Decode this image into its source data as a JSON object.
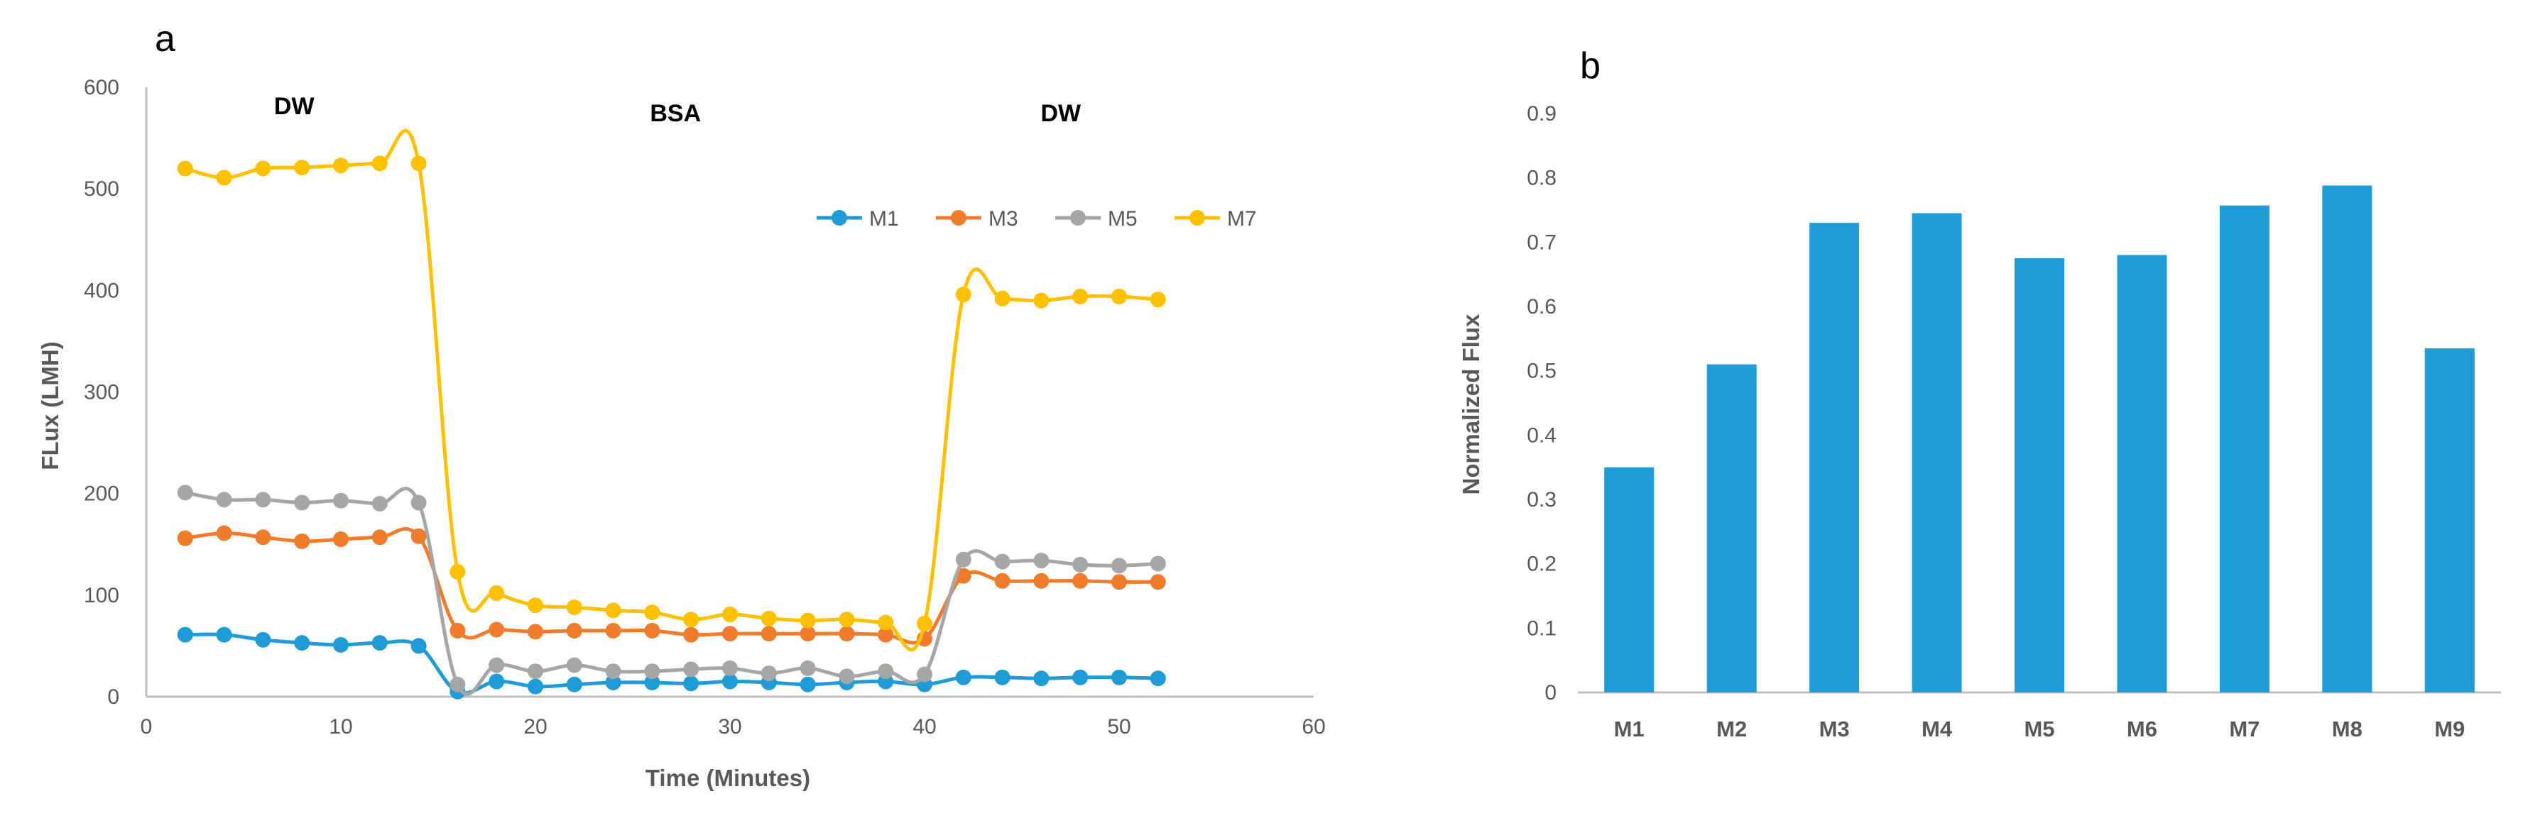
{
  "colors": {
    "M1": "#1f9bd7",
    "M3": "#f07b2b",
    "M5": "#a6a6a6",
    "M7": "#ffc000",
    "bar": "#1f9bd7",
    "axis": "#bfbfbf",
    "text": "#595959"
  },
  "chart_data": [
    {
      "type": "line",
      "panel_label": "a",
      "xlabel": "Time (Minutes)",
      "ylabel": "FLux (LMH)",
      "xlim": [
        0,
        60
      ],
      "ylim": [
        0,
        600
      ],
      "xticks": [
        "0",
        "10",
        "20",
        "30",
        "40",
        "50",
        "60"
      ],
      "yticks": [
        "0",
        "100",
        "200",
        "300",
        "400",
        "500",
        "600"
      ],
      "legend_position": "top-right",
      "annotations": [
        {
          "text": "DW",
          "x": 7.6,
          "y": 582
        },
        {
          "text": "BSA",
          "x": 27.2,
          "y": 575
        },
        {
          "text": "DW",
          "x": 47.0,
          "y": 575
        }
      ],
      "x": [
        2,
        4,
        6,
        8,
        10,
        12,
        14,
        16,
        18,
        20,
        22,
        24,
        26,
        28,
        30,
        32,
        34,
        36,
        38,
        40,
        42,
        44,
        46,
        48,
        50,
        52
      ],
      "series": [
        {
          "name": "M1",
          "values": [
            61,
            61,
            56,
            53,
            51,
            53,
            50,
            5,
            15,
            10,
            12,
            14,
            14,
            13,
            15,
            14,
            12,
            14,
            15,
            12,
            19,
            19,
            18,
            19,
            19,
            18
          ]
        },
        {
          "name": "M3",
          "values": [
            156,
            161,
            157,
            153,
            155,
            157,
            158,
            65,
            66,
            64,
            65,
            65,
            65,
            61,
            62,
            62,
            62,
            62,
            61,
            57,
            119,
            114,
            114,
            114,
            113,
            113
          ]
        },
        {
          "name": "M5",
          "values": [
            201,
            194,
            194,
            191,
            193,
            190,
            191,
            12,
            31,
            25,
            31,
            25,
            25,
            27,
            28,
            23,
            28,
            20,
            25,
            22,
            135,
            133,
            134,
            130,
            129,
            131
          ]
        },
        {
          "name": "M7",
          "values": [
            520,
            511,
            520,
            521,
            523,
            525,
            525,
            123,
            102,
            90,
            88,
            85,
            83,
            76,
            81,
            77,
            75,
            76,
            73,
            72,
            396,
            392,
            390,
            394,
            394,
            391
          ]
        }
      ]
    },
    {
      "type": "bar",
      "panel_label": "b",
      "xlabel": "",
      "ylabel": "Normalized Flux",
      "ylim": [
        0,
        0.9
      ],
      "yticks": [
        "0",
        "0.1",
        "0.2",
        "0.3",
        "0.4",
        "0.5",
        "0.6",
        "0.7",
        "0.8",
        "0.9"
      ],
      "categories": [
        "M1",
        "M2",
        "M3",
        "M4",
        "M5",
        "M6",
        "M7",
        "M8",
        "M9"
      ],
      "values": [
        0.35,
        0.51,
        0.73,
        0.745,
        0.675,
        0.68,
        0.757,
        0.788,
        0.535
      ]
    }
  ]
}
